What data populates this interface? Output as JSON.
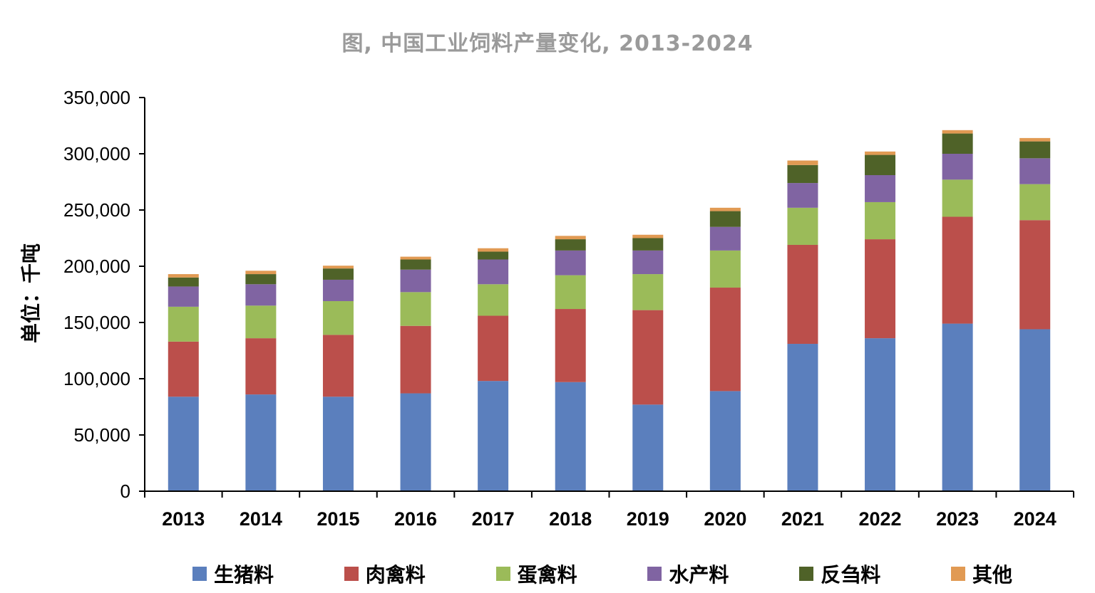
{
  "chart_data": {
    "type": "bar",
    "stacked": true,
    "title": "图, 中国工业饲料产量变化, 2013-2024",
    "ylabel": "单位：千吨",
    "xlabel": "",
    "ylim": [
      0,
      350000
    ],
    "yticks": [
      0,
      50000,
      100000,
      150000,
      200000,
      250000,
      300000,
      350000
    ],
    "ytick_labels": [
      "0",
      "50,000",
      "100,000",
      "150,000",
      "200,000",
      "250,000",
      "300,000",
      "350,000"
    ],
    "categories": [
      "2013",
      "2014",
      "2015",
      "2016",
      "2017",
      "2018",
      "2019",
      "2020",
      "2021",
      "2022",
      "2023",
      "2024"
    ],
    "series": [
      {
        "name": "生猪料",
        "color": "#5b7fbd",
        "values": [
          84000,
          86000,
          84000,
          87000,
          98000,
          97000,
          77000,
          89000,
          131000,
          136000,
          149000,
          144000
        ]
      },
      {
        "name": "肉禽料",
        "color": "#bb4f4b",
        "values": [
          49000,
          50000,
          55000,
          60000,
          58000,
          65000,
          84000,
          92000,
          88000,
          88000,
          95000,
          97000
        ]
      },
      {
        "name": "蛋禽料",
        "color": "#9bbb59",
        "values": [
          31000,
          29000,
          30000,
          30000,
          28000,
          30000,
          32000,
          33000,
          33000,
          33000,
          33000,
          32000
        ]
      },
      {
        "name": "水产料",
        "color": "#8064a2",
        "values": [
          18000,
          19000,
          19000,
          20000,
          22000,
          22000,
          21000,
          21000,
          22000,
          24000,
          23000,
          23000
        ]
      },
      {
        "name": "反刍料",
        "color": "#4f6228",
        "values": [
          8000,
          9000,
          10000,
          9000,
          7000,
          10000,
          11000,
          14000,
          16000,
          18000,
          18000,
          15000
        ]
      },
      {
        "name": "其他",
        "color": "#e19a53",
        "values": [
          3000,
          3000,
          2500,
          2500,
          3000,
          3000,
          3000,
          3000,
          4000,
          3000,
          3000,
          3000
        ]
      }
    ],
    "grid": false,
    "legend": "bottom"
  }
}
